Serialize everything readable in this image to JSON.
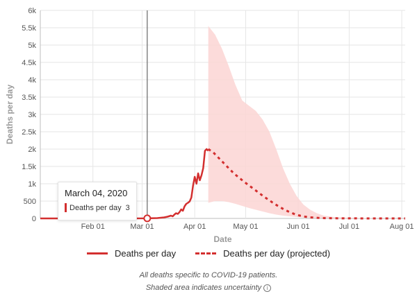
{
  "chart_data": {
    "type": "line",
    "xlabel": "Date",
    "ylabel": "Deaths per day",
    "x_ticks": [
      "Feb 01",
      "Mar 01",
      "Apr 01",
      "May 01",
      "Jun 01",
      "Jul 01",
      "Aug 01"
    ],
    "x_range": [
      "2020-01-01",
      "2020-08-03"
    ],
    "y_ticks": [
      "0",
      "500",
      "1k",
      "1.5k",
      "2k",
      "2.5k",
      "3k",
      "3.5k",
      "4k",
      "4.5k",
      "5k",
      "5.5k",
      "6k"
    ],
    "ylim": [
      0,
      6000
    ],
    "grid": "horizontal and vertical gridlines",
    "series": [
      {
        "name": "Deaths per day",
        "style": "solid",
        "color": "#d32f2f",
        "x": [
          "2020-01-01",
          "2020-03-04",
          "2020-03-10",
          "2020-03-14",
          "2020-03-16",
          "2020-03-18",
          "2020-03-19",
          "2020-03-20",
          "2020-03-21",
          "2020-03-22",
          "2020-03-23",
          "2020-03-24",
          "2020-03-25",
          "2020-03-26",
          "2020-03-27",
          "2020-03-28",
          "2020-03-29",
          "2020-03-30",
          "2020-03-31",
          "2020-04-01",
          "2020-04-02",
          "2020-04-03",
          "2020-04-04",
          "2020-04-05",
          "2020-04-06",
          "2020-04-07",
          "2020-04-08",
          "2020-04-09"
        ],
        "y": [
          0,
          3,
          10,
          30,
          50,
          80,
          60,
          110,
          150,
          130,
          180,
          260,
          220,
          350,
          420,
          450,
          490,
          600,
          950,
          1200,
          1000,
          1300,
          1100,
          1250,
          1450,
          1950,
          2000,
          1950
        ]
      },
      {
        "name": "Deaths per day (projected)",
        "style": "dashed",
        "color": "#d32f2f",
        "x": [
          "2020-04-09",
          "2020-04-12",
          "2020-04-15",
          "2020-04-18",
          "2020-04-21",
          "2020-04-24",
          "2020-04-27",
          "2020-04-30",
          "2020-05-03",
          "2020-05-06",
          "2020-05-09",
          "2020-05-12",
          "2020-05-15",
          "2020-05-18",
          "2020-05-21",
          "2020-05-24",
          "2020-05-27",
          "2020-05-30",
          "2020-06-02",
          "2020-06-05",
          "2020-06-08",
          "2020-06-11",
          "2020-06-15",
          "2020-06-22",
          "2020-07-01",
          "2020-07-15",
          "2020-08-03"
        ],
        "y": [
          2000,
          1900,
          1750,
          1600,
          1450,
          1300,
          1180,
          1060,
          950,
          840,
          730,
          620,
          520,
          420,
          330,
          250,
          180,
          120,
          80,
          50,
          30,
          20,
          10,
          5,
          2,
          0,
          0
        ]
      }
    ],
    "uncertainty_band": {
      "x": [
        "2020-04-09",
        "2020-04-13",
        "2020-04-17",
        "2020-04-21",
        "2020-04-25",
        "2020-04-29",
        "2020-05-03",
        "2020-05-07",
        "2020-05-11",
        "2020-05-15",
        "2020-05-19",
        "2020-05-23",
        "2020-05-27",
        "2020-05-31",
        "2020-06-04",
        "2020-06-08",
        "2020-06-12",
        "2020-06-16",
        "2020-06-22",
        "2020-07-01",
        "2020-07-15",
        "2020-08-03"
      ],
      "upper": [
        5550,
        5300,
        4900,
        4400,
        3850,
        3400,
        3250,
        3100,
        2850,
        2500,
        2000,
        1450,
        1000,
        650,
        400,
        250,
        150,
        80,
        40,
        20,
        5,
        0
      ],
      "lower": [
        450,
        500,
        500,
        470,
        420,
        360,
        300,
        250,
        200,
        150,
        110,
        80,
        60,
        40,
        25,
        15,
        10,
        5,
        2,
        0,
        0,
        0
      ]
    },
    "hover": {
      "x": "2020-03-04",
      "date_label": "March 04, 2020",
      "series_label": "Deaths per day",
      "value": "3"
    }
  },
  "legend": {
    "items": [
      "Deaths per day",
      "Deaths per day (projected)"
    ]
  },
  "footnotes": {
    "line1": "All deaths specific to COVID-19 patients.",
    "line2": "Shaded area indicates uncertainty"
  },
  "colors": {
    "series": "#d32f2f",
    "band": "#fbd5d3",
    "grid": "#e6e6e6",
    "hover_line": "#666666"
  }
}
